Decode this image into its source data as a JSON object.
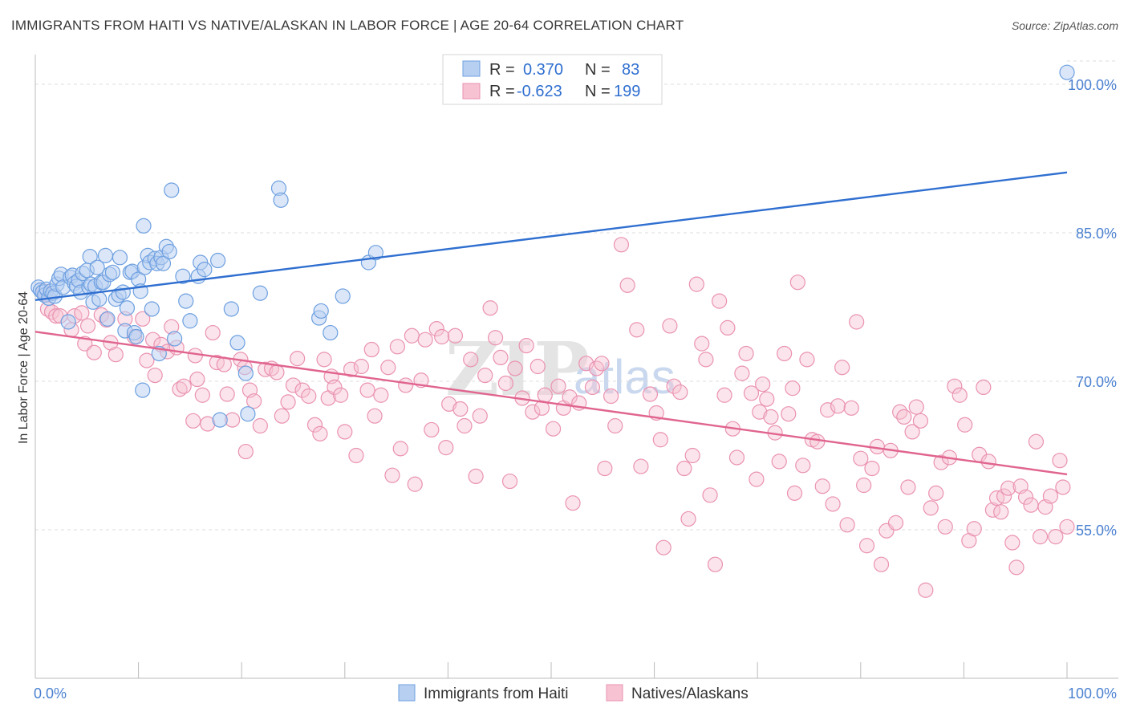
{
  "title": "IMMIGRANTS FROM HAITI VS NATIVE/ALASKAN IN LABOR FORCE | AGE 20-64 CORRELATION CHART",
  "source": "Source: ZipAtlas.com",
  "watermark": {
    "zip": "ZIP",
    "atlas": "atlas"
  },
  "colors": {
    "haiti_fill": "#b7d0f2",
    "haiti_stroke": "#6d9fe0",
    "haiti_line": "#2f6fd0",
    "native_fill": "#f7c3d3",
    "native_stroke": "#ea92b1",
    "native_line": "#e0648f",
    "grid": "#dddddd",
    "axis_text": "#4a80d0"
  },
  "legend": {
    "items": [
      {
        "r_label": "R =",
        "r_value": "0.370",
        "n_label": "N =",
        "n_value": "83"
      },
      {
        "r_label": "R =",
        "r_value": "-0.623",
        "n_label": "N =",
        "n_value": "199"
      }
    ]
  },
  "chart_data": {
    "type": "scatter",
    "title": "IMMIGRANTS FROM HAITI VS NATIVE/ALASKAN IN LABOR FORCE | AGE 20-64 CORRELATION CHART",
    "xlabel": "",
    "ylabel": "In Labor Force | Age 20-64",
    "xlim": [
      0,
      100
    ],
    "ylim": [
      40,
      103
    ],
    "x_tick_labels": [
      "0.0%",
      "100.0%"
    ],
    "y_ticks": [
      55,
      70,
      85,
      100
    ],
    "y_tick_labels": [
      "55.0%",
      "70.0%",
      "85.0%",
      "100.0%"
    ],
    "grid": true,
    "legend_position": "top-center",
    "series": [
      {
        "name": "Immigrants from Haiti",
        "r": 0.37,
        "n": 83,
        "trend": {
          "x": [
            0,
            100
          ],
          "y": [
            78.2,
            91.1
          ]
        },
        "points": [
          [
            0.3,
            79.5
          ],
          [
            0.5,
            79.2
          ],
          [
            0.7,
            79.0
          ],
          [
            0.9,
            78.7
          ],
          [
            1.1,
            79.3
          ],
          [
            1.3,
            78.4
          ],
          [
            1.5,
            79.1
          ],
          [
            1.7,
            78.9
          ],
          [
            1.9,
            78.6
          ],
          [
            2.1,
            79.8
          ],
          [
            2.3,
            80.4
          ],
          [
            2.5,
            80.8
          ],
          [
            2.7,
            79.5
          ],
          [
            3.2,
            76.0
          ],
          [
            3.4,
            80.5
          ],
          [
            3.6,
            80.7
          ],
          [
            3.8,
            79.9
          ],
          [
            4.0,
            79.6
          ],
          [
            4.2,
            80.2
          ],
          [
            4.4,
            79.0
          ],
          [
            4.6,
            80.9
          ],
          [
            5.0,
            81.2
          ],
          [
            5.2,
            79.5
          ],
          [
            5.4,
            79.8
          ],
          [
            5.6,
            78.0
          ],
          [
            5.8,
            79.6
          ],
          [
            5.3,
            82.6
          ],
          [
            6.0,
            81.5
          ],
          [
            6.2,
            78.3
          ],
          [
            6.4,
            80.0
          ],
          [
            6.6,
            80.0
          ],
          [
            6.8,
            82.7
          ],
          [
            7.0,
            76.3
          ],
          [
            7.2,
            80.8
          ],
          [
            7.5,
            81.0
          ],
          [
            7.8,
            78.3
          ],
          [
            8.1,
            78.7
          ],
          [
            8.2,
            82.5
          ],
          [
            8.5,
            79.0
          ],
          [
            8.7,
            75.1
          ],
          [
            8.9,
            77.4
          ],
          [
            9.2,
            81.0
          ],
          [
            9.4,
            81.1
          ],
          [
            9.6,
            74.9
          ],
          [
            9.8,
            74.5
          ],
          [
            10.0,
            80.3
          ],
          [
            10.2,
            79.1
          ],
          [
            10.4,
            69.1
          ],
          [
            10.5,
            85.7
          ],
          [
            10.6,
            81.5
          ],
          [
            10.9,
            82.7
          ],
          [
            11.1,
            82.0
          ],
          [
            11.3,
            77.3
          ],
          [
            11.6,
            82.4
          ],
          [
            11.8,
            81.9
          ],
          [
            12.0,
            72.8
          ],
          [
            12.2,
            82.5
          ],
          [
            12.4,
            81.9
          ],
          [
            12.7,
            83.6
          ],
          [
            13.0,
            83.1
          ],
          [
            13.2,
            89.3
          ],
          [
            13.5,
            74.3
          ],
          [
            14.3,
            80.6
          ],
          [
            14.6,
            78.1
          ],
          [
            15.0,
            76.1
          ],
          [
            15.8,
            80.6
          ],
          [
            16.0,
            82.0
          ],
          [
            16.4,
            81.3
          ],
          [
            17.7,
            82.2
          ],
          [
            17.9,
            66.1
          ],
          [
            19.0,
            77.3
          ],
          [
            19.6,
            73.9
          ],
          [
            20.4,
            70.8
          ],
          [
            20.6,
            66.7
          ],
          [
            21.8,
            78.9
          ],
          [
            23.6,
            89.5
          ],
          [
            23.8,
            88.3
          ],
          [
            27.5,
            76.4
          ],
          [
            27.7,
            77.1
          ],
          [
            28.6,
            74.9
          ],
          [
            29.8,
            78.6
          ],
          [
            32.3,
            82.0
          ],
          [
            33.0,
            83.0
          ],
          [
            100.0,
            101.2
          ]
        ]
      },
      {
        "name": "Natives/Alaskans",
        "r": -0.623,
        "n": 199,
        "trend": {
          "x": [
            0,
            100
          ],
          "y": [
            75.0,
            60.6
          ]
        },
        "points": [
          [
            0.8,
            79.1
          ],
          [
            1.0,
            78.8
          ],
          [
            1.2,
            77.3
          ],
          [
            1.6,
            77.0
          ],
          [
            2.0,
            76.6
          ],
          [
            2.4,
            76.6
          ],
          [
            3.5,
            75.2
          ],
          [
            3.8,
            76.6
          ],
          [
            4.5,
            76.9
          ],
          [
            4.8,
            73.8
          ],
          [
            5.1,
            75.6
          ],
          [
            5.7,
            72.9
          ],
          [
            6.4,
            76.7
          ],
          [
            6.9,
            76.2
          ],
          [
            7.3,
            73.9
          ],
          [
            7.8,
            72.7
          ],
          [
            8.7,
            76.3
          ],
          [
            9.6,
            74.5
          ],
          [
            10.4,
            76.3
          ],
          [
            10.8,
            72.1
          ],
          [
            11.4,
            74.2
          ],
          [
            11.6,
            70.6
          ],
          [
            12.2,
            73.7
          ],
          [
            12.8,
            73.0
          ],
          [
            13.2,
            75.5
          ],
          [
            13.7,
            73.4
          ],
          [
            14.0,
            69.2
          ],
          [
            14.4,
            69.5
          ],
          [
            15.3,
            66.0
          ],
          [
            15.5,
            72.6
          ],
          [
            15.7,
            70.2
          ],
          [
            16.2,
            68.6
          ],
          [
            16.7,
            65.7
          ],
          [
            17.2,
            74.9
          ],
          [
            17.6,
            71.9
          ],
          [
            18.3,
            71.7
          ],
          [
            18.6,
            68.7
          ],
          [
            19.1,
            66.1
          ],
          [
            19.9,
            72.2
          ],
          [
            20.3,
            71.4
          ],
          [
            20.4,
            62.9
          ],
          [
            20.8,
            69.1
          ],
          [
            21.2,
            68.0
          ],
          [
            21.8,
            65.5
          ],
          [
            22.3,
            71.2
          ],
          [
            22.9,
            71.3
          ],
          [
            23.4,
            70.9
          ],
          [
            23.9,
            66.5
          ],
          [
            24.5,
            67.9
          ],
          [
            25.0,
            69.6
          ],
          [
            25.4,
            72.3
          ],
          [
            25.9,
            69.1
          ],
          [
            26.5,
            68.5
          ],
          [
            27.1,
            65.6
          ],
          [
            27.6,
            64.7
          ],
          [
            28.0,
            72.2
          ],
          [
            28.4,
            68.3
          ],
          [
            28.7,
            70.5
          ],
          [
            29.0,
            69.4
          ],
          [
            29.6,
            68.6
          ],
          [
            30.0,
            64.9
          ],
          [
            30.6,
            71.2
          ],
          [
            31.1,
            62.5
          ],
          [
            31.6,
            71.5
          ],
          [
            32.2,
            69.1
          ],
          [
            32.6,
            73.2
          ],
          [
            32.9,
            66.5
          ],
          [
            33.5,
            68.6
          ],
          [
            34.2,
            71.4
          ],
          [
            34.6,
            60.5
          ],
          [
            35.1,
            73.5
          ],
          [
            35.4,
            63.2
          ],
          [
            35.9,
            69.6
          ],
          [
            36.5,
            74.6
          ],
          [
            36.8,
            59.6
          ],
          [
            37.4,
            70.1
          ],
          [
            37.8,
            74.2
          ],
          [
            38.4,
            65.1
          ],
          [
            38.9,
            75.3
          ],
          [
            39.4,
            74.5
          ],
          [
            39.8,
            63.3
          ],
          [
            40.1,
            67.7
          ],
          [
            40.7,
            74.6
          ],
          [
            41.2,
            67.2
          ],
          [
            41.6,
            65.5
          ],
          [
            42.2,
            72.2
          ],
          [
            42.7,
            60.4
          ],
          [
            43.1,
            66.5
          ],
          [
            43.6,
            70.6
          ],
          [
            44.1,
            77.4
          ],
          [
            44.6,
            74.4
          ],
          [
            45.1,
            72.4
          ],
          [
            45.6,
            69.8
          ],
          [
            46.0,
            59.9
          ],
          [
            46.5,
            71.3
          ],
          [
            47.2,
            68.3
          ],
          [
            47.6,
            73.6
          ],
          [
            48.2,
            66.9
          ],
          [
            48.7,
            71.5
          ],
          [
            49.1,
            67.3
          ],
          [
            49.4,
            68.6
          ],
          [
            50.2,
            65.2
          ],
          [
            50.7,
            69.5
          ],
          [
            51.2,
            67.3
          ],
          [
            51.8,
            68.4
          ],
          [
            52.1,
            57.7
          ],
          [
            52.7,
            67.8
          ],
          [
            53.4,
            71.8
          ],
          [
            54.0,
            69.4
          ],
          [
            54.4,
            71.3
          ],
          [
            54.9,
            71.8
          ],
          [
            55.2,
            61.2
          ],
          [
            55.8,
            68.5
          ],
          [
            56.2,
            65.5
          ],
          [
            56.8,
            83.8
          ],
          [
            57.4,
            79.7
          ],
          [
            58.3,
            75.2
          ],
          [
            58.7,
            61.4
          ],
          [
            59.6,
            68.7
          ],
          [
            60.2,
            66.8
          ],
          [
            60.6,
            64.1
          ],
          [
            60.9,
            53.2
          ],
          [
            61.5,
            75.6
          ],
          [
            61.9,
            69.5
          ],
          [
            62.5,
            68.9
          ],
          [
            62.9,
            61.2
          ],
          [
            63.3,
            56.1
          ],
          [
            63.7,
            62.5
          ],
          [
            64.1,
            79.8
          ],
          [
            64.6,
            73.8
          ],
          [
            65.0,
            72.2
          ],
          [
            65.4,
            58.5
          ],
          [
            65.9,
            51.5
          ],
          [
            66.3,
            78.1
          ],
          [
            66.8,
            68.6
          ],
          [
            67.1,
            75.4
          ],
          [
            67.6,
            65.2
          ],
          [
            68.0,
            62.3
          ],
          [
            68.5,
            70.8
          ],
          [
            68.9,
            72.8
          ],
          [
            69.4,
            68.8
          ],
          [
            69.9,
            60.1
          ],
          [
            70.2,
            66.9
          ],
          [
            70.5,
            69.7
          ],
          [
            70.9,
            68.2
          ],
          [
            71.3,
            66.4
          ],
          [
            71.7,
            64.8
          ],
          [
            72.1,
            61.9
          ],
          [
            72.6,
            72.8
          ],
          [
            73.0,
            66.7
          ],
          [
            73.4,
            69.3
          ],
          [
            73.6,
            58.7
          ],
          [
            73.9,
            80.0
          ],
          [
            74.4,
            61.5
          ],
          [
            74.8,
            72.2
          ],
          [
            75.3,
            64.1
          ],
          [
            75.8,
            63.9
          ],
          [
            76.3,
            59.4
          ],
          [
            76.8,
            67.1
          ],
          [
            77.3,
            57.6
          ],
          [
            77.8,
            67.5
          ],
          [
            78.2,
            71.4
          ],
          [
            78.7,
            55.5
          ],
          [
            79.1,
            67.3
          ],
          [
            79.6,
            76.0
          ],
          [
            80.0,
            62.2
          ],
          [
            80.3,
            59.5
          ],
          [
            80.6,
            53.4
          ],
          [
            81.1,
            61.2
          ],
          [
            81.6,
            63.4
          ],
          [
            82.0,
            51.5
          ],
          [
            82.5,
            54.9
          ],
          [
            82.9,
            63.0
          ],
          [
            83.4,
            55.7
          ],
          [
            83.8,
            66.9
          ],
          [
            84.2,
            66.4
          ],
          [
            84.6,
            59.3
          ],
          [
            85.0,
            64.9
          ],
          [
            85.4,
            67.4
          ],
          [
            85.8,
            66.0
          ],
          [
            86.3,
            48.9
          ],
          [
            86.8,
            57.2
          ],
          [
            87.3,
            58.7
          ],
          [
            87.8,
            61.8
          ],
          [
            88.2,
            55.3
          ],
          [
            88.6,
            62.3
          ],
          [
            89.1,
            69.5
          ],
          [
            89.6,
            68.6
          ],
          [
            90.1,
            65.6
          ],
          [
            90.5,
            53.9
          ],
          [
            91.0,
            55.1
          ],
          [
            91.5,
            62.6
          ],
          [
            91.9,
            69.4
          ],
          [
            92.4,
            61.9
          ],
          [
            92.8,
            57.0
          ],
          [
            93.2,
            58.2
          ],
          [
            93.6,
            56.8
          ],
          [
            93.9,
            58.4
          ],
          [
            94.3,
            59.2
          ],
          [
            94.7,
            53.7
          ],
          [
            95.1,
            51.2
          ],
          [
            95.5,
            59.4
          ],
          [
            96.0,
            58.3
          ],
          [
            96.5,
            57.5
          ],
          [
            97.0,
            63.9
          ],
          [
            97.4,
            54.3
          ],
          [
            97.9,
            57.3
          ],
          [
            98.4,
            58.4
          ],
          [
            98.9,
            54.3
          ],
          [
            99.3,
            62.0
          ],
          [
            99.6,
            59.3
          ],
          [
            100.0,
            55.3
          ]
        ]
      }
    ]
  },
  "bottom_legend": [
    {
      "label": "Immigrants from Haiti"
    },
    {
      "label": "Natives/Alaskans"
    }
  ]
}
